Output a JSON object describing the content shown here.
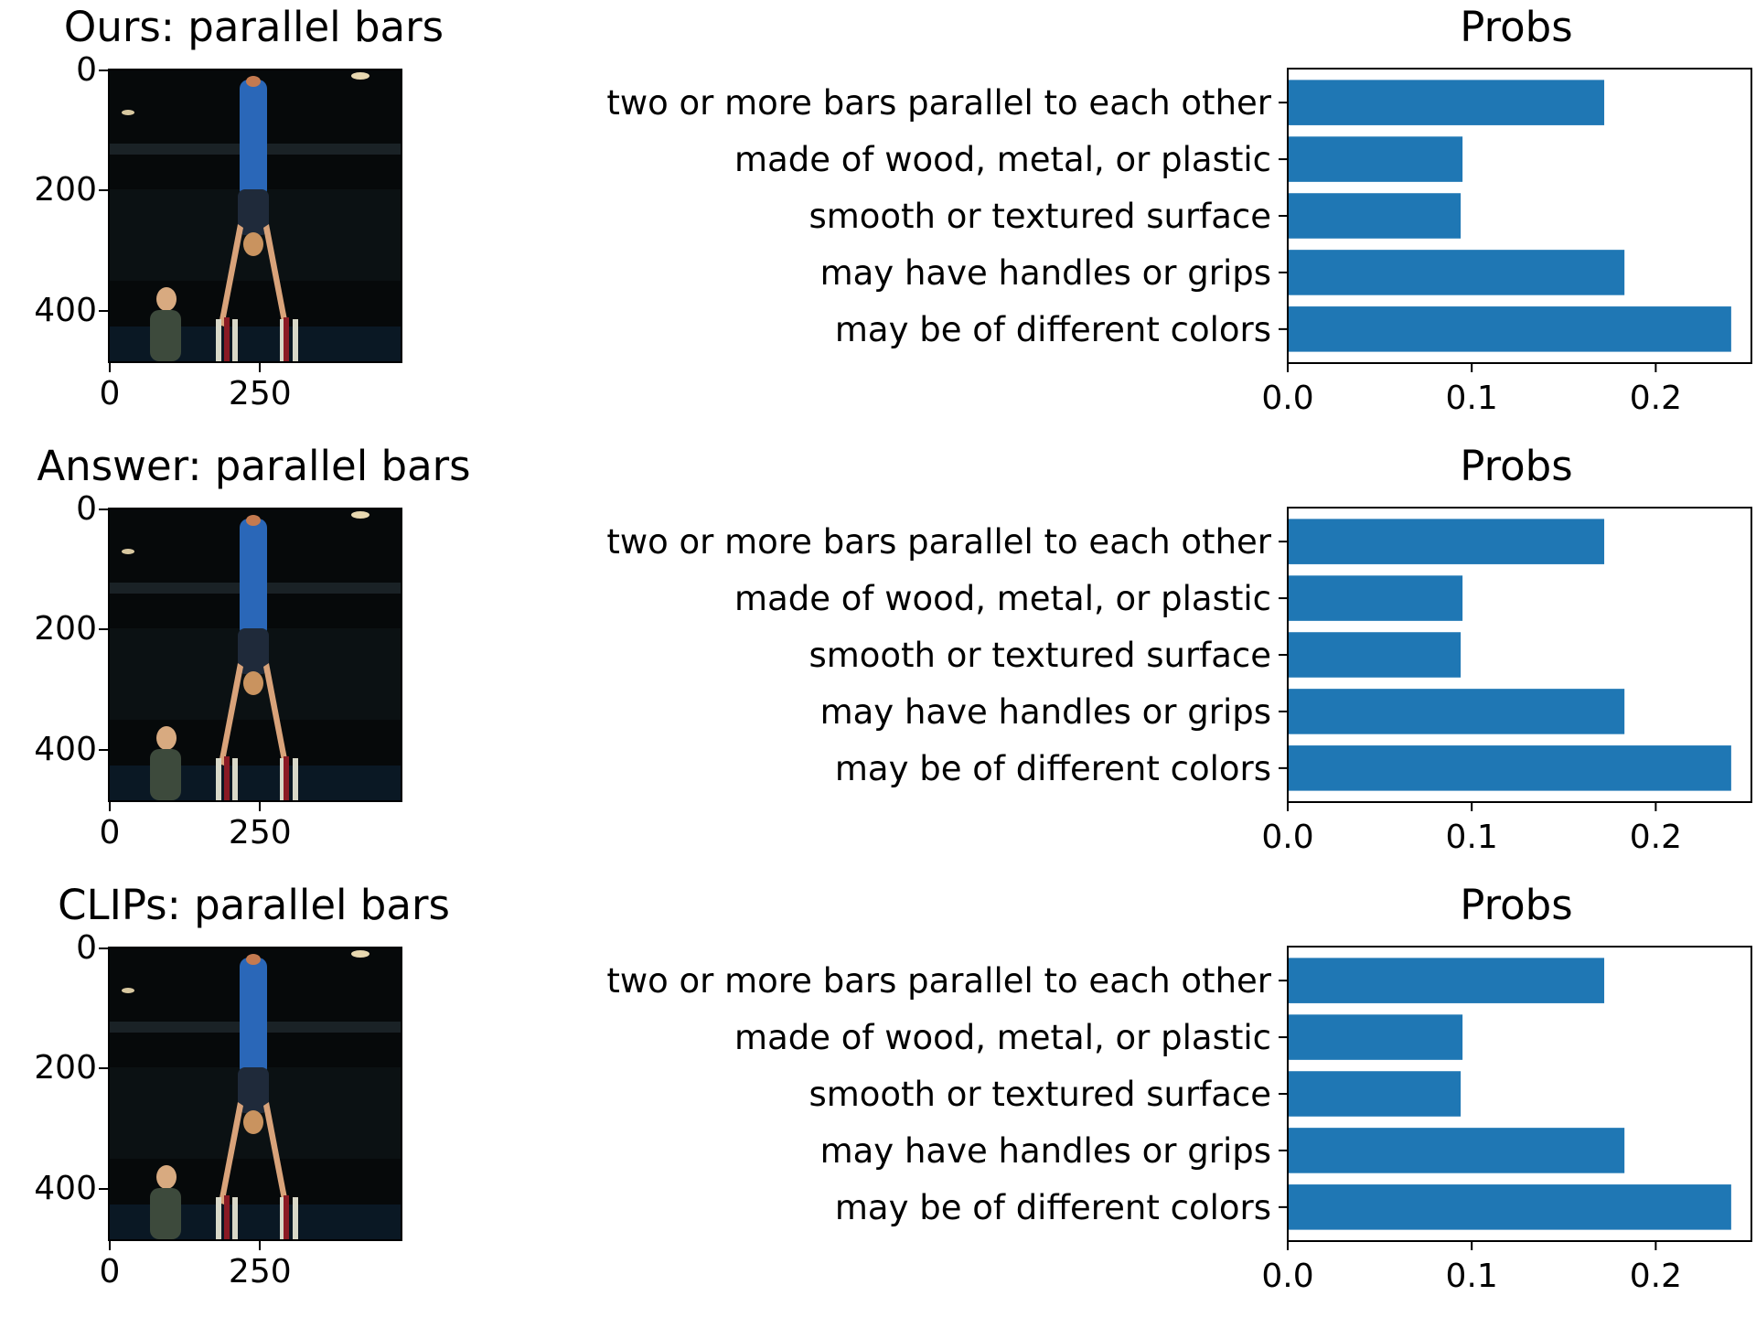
{
  "charts": [
    {
      "title_prefix": "Ours",
      "title": "Ours: parallel bars",
      "chart_title": "Probs"
    },
    {
      "title_prefix": "Answer",
      "title": "Answer: parallel bars",
      "chart_title": "Probs"
    },
    {
      "title_prefix": "CLIPs",
      "title": "CLIPs: parallel bars",
      "chart_title": "Probs"
    }
  ],
  "image_axis": {
    "y_ticks": [
      "0",
      "200",
      "400"
    ],
    "x_ticks": [
      "0",
      "250"
    ]
  },
  "colors": {
    "bar": "#1f77b4"
  },
  "chart_data": [
    {
      "type": "bar",
      "orientation": "horizontal",
      "title": "Probs",
      "categories": [
        "two or more bars parallel to each other",
        "made of wood, metal, or plastic",
        "smooth or textured surface",
        "may have handles or grips",
        "may be of different colors"
      ],
      "values": [
        0.172,
        0.095,
        0.094,
        0.183,
        0.241
      ],
      "xlim": [
        0,
        0.252
      ],
      "x_ticks": [
        "0.0",
        "0.1",
        "0.2"
      ]
    },
    {
      "type": "bar",
      "orientation": "horizontal",
      "title": "Probs",
      "categories": [
        "two or more bars parallel to each other",
        "made of wood, metal, or plastic",
        "smooth or textured surface",
        "may have handles or grips",
        "may be of different colors"
      ],
      "values": [
        0.172,
        0.095,
        0.094,
        0.183,
        0.241
      ],
      "xlim": [
        0,
        0.252
      ],
      "x_ticks": [
        "0.0",
        "0.1",
        "0.2"
      ]
    },
    {
      "type": "bar",
      "orientation": "horizontal",
      "title": "Probs",
      "categories": [
        "two or more bars parallel to each other",
        "made of wood, metal, or plastic",
        "smooth or textured surface",
        "may have handles or grips",
        "may be of different colors"
      ],
      "values": [
        0.172,
        0.095,
        0.094,
        0.183,
        0.241
      ],
      "xlim": [
        0,
        0.252
      ],
      "x_ticks": [
        "0.0",
        "0.1",
        "0.2"
      ]
    }
  ]
}
